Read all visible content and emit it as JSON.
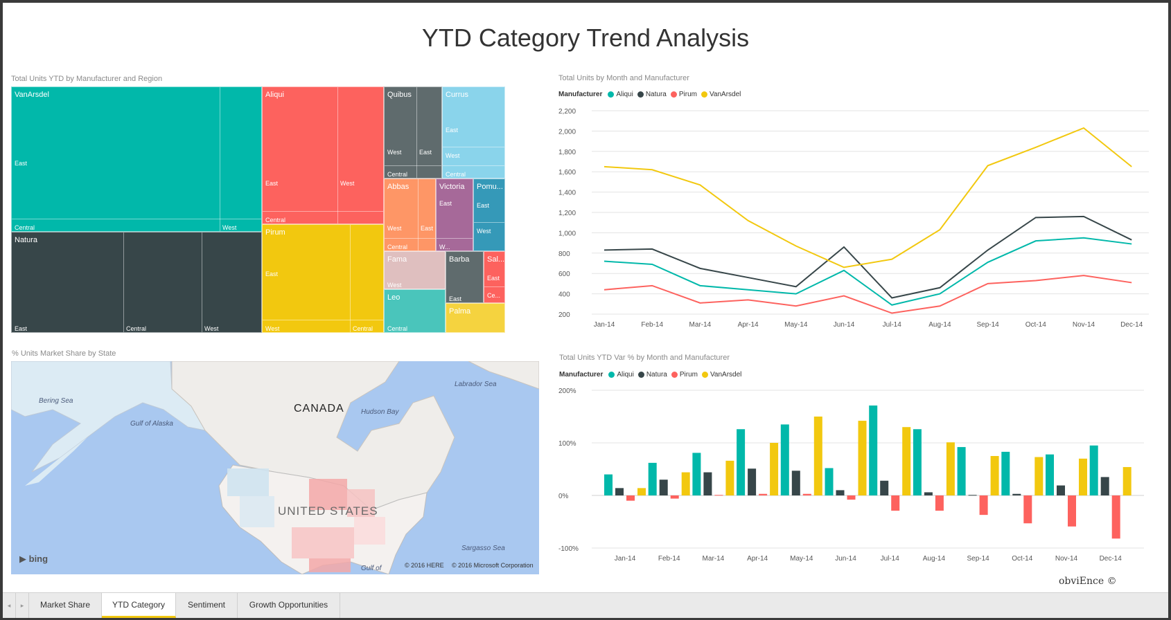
{
  "report": {
    "title": "YTD Category Trend Analysis",
    "copyright": "obviEnce ©"
  },
  "treemap": {
    "title": "Total Units YTD by Manufacturer and Region",
    "manufacturers": [
      {
        "name": "VanArsdel",
        "color": "#01b8aa",
        "regions": [
          "East",
          "Central",
          "West"
        ]
      },
      {
        "name": "Natura",
        "color": "#374649",
        "regions": [
          "East",
          "Central",
          "West"
        ]
      },
      {
        "name": "Aliqui",
        "color": "#fd625e",
        "regions": [
          "East",
          "West",
          "Central"
        ]
      },
      {
        "name": "Pirum",
        "color": "#f2c80f",
        "regions": [
          "East",
          "West",
          "Central"
        ]
      },
      {
        "name": "Quibus",
        "color": "#5f6b6d",
        "regions": [
          "West",
          "East",
          "Central"
        ]
      },
      {
        "name": "Currus",
        "color": "#8ad4eb",
        "regions": [
          "East",
          "West",
          "Central"
        ]
      },
      {
        "name": "Abbas",
        "color": "#fe9666",
        "regions": [
          "West",
          "East",
          "Central"
        ]
      },
      {
        "name": "Victoria",
        "color": "#a66999",
        "regions": [
          "East",
          "W..."
        ]
      },
      {
        "name": "Pomu...",
        "color": "#3599b8",
        "regions": [
          "East",
          "West"
        ]
      },
      {
        "name": "Fama",
        "color": "#dfbfbf",
        "regions": [
          "West"
        ]
      },
      {
        "name": "Barba",
        "color": "#5f6b6d",
        "regions": [
          "East"
        ]
      },
      {
        "name": "Sal...",
        "color": "#fd625e",
        "regions": [
          "East",
          "Ce..."
        ]
      },
      {
        "name": "Leo",
        "color": "#4ac5bb",
        "regions": [
          "Central"
        ]
      },
      {
        "name": "Palma",
        "color": "#f5d33f",
        "regions": []
      }
    ]
  },
  "map": {
    "title": "% Units Market Share by State",
    "labels": {
      "canada": "CANADA",
      "united_states": "UNITED STATES",
      "bering_sea": "Bering Sea",
      "gulf_alaska": "Gulf of Alaska",
      "hudson_bay": "Hudson Bay",
      "labrador_sea": "Labrador Sea",
      "sargasso_sea": "Sargasso Sea",
      "gulf_of": "Gulf of"
    },
    "bing_logo": "bing",
    "attribution_here": "© 2016 HERE",
    "attribution_ms": "© 2016 Microsoft Corporation"
  },
  "legend": {
    "title": "Manufacturer",
    "items": [
      {
        "name": "Aliqui",
        "color": "#01b8aa"
      },
      {
        "name": "Natura",
        "color": "#374649"
      },
      {
        "name": "Pirum",
        "color": "#fd625e"
      },
      {
        "name": "VanArsdel",
        "color": "#f2c80f"
      }
    ]
  },
  "chart_data": [
    {
      "type": "line",
      "title": "Total Units by Month and Manufacturer",
      "categories": [
        "Jan-14",
        "Feb-14",
        "Mar-14",
        "Apr-14",
        "May-14",
        "Jun-14",
        "Jul-14",
        "Aug-14",
        "Sep-14",
        "Oct-14",
        "Nov-14",
        "Dec-14"
      ],
      "y_ticks": [
        "200",
        "400",
        "600",
        "800",
        "1,000",
        "1,200",
        "1,400",
        "1,600",
        "1,800",
        "2,000",
        "2,200"
      ],
      "ylim": [
        200,
        2200
      ],
      "grid": true,
      "legend_position": "top-left",
      "series": [
        {
          "name": "Aliqui",
          "color": "#01b8aa",
          "values": [
            720,
            690,
            480,
            440,
            400,
            630,
            290,
            400,
            710,
            920,
            950,
            890
          ]
        },
        {
          "name": "Natura",
          "color": "#374649",
          "values": [
            830,
            840,
            650,
            560,
            470,
            860,
            360,
            460,
            830,
            1150,
            1160,
            930
          ]
        },
        {
          "name": "Pirum",
          "color": "#fd625e",
          "values": [
            440,
            480,
            310,
            340,
            280,
            380,
            210,
            280,
            500,
            530,
            580,
            510
          ]
        },
        {
          "name": "VanArsdel",
          "color": "#f2c80f",
          "values": [
            1650,
            1620,
            1470,
            1120,
            870,
            660,
            740,
            1030,
            1660,
            1840,
            2030,
            1650
          ]
        }
      ]
    },
    {
      "type": "bar",
      "title": "Total Units YTD Var % by Month and Manufacturer",
      "categories": [
        "Jan-14",
        "Feb-14",
        "Mar-14",
        "Apr-14",
        "May-14",
        "Jun-14",
        "Jul-14",
        "Aug-14",
        "Sep-14",
        "Oct-14",
        "Nov-14",
        "Dec-14"
      ],
      "y_ticks": [
        "-100%",
        "0%",
        "100%",
        "200%"
      ],
      "ylim": [
        -100,
        200
      ],
      "grid": true,
      "legend_position": "top-left",
      "series": [
        {
          "name": "Aliqui",
          "color": "#01b8aa",
          "values": [
            40,
            62,
            81,
            126,
            135,
            52,
            171,
            126,
            92,
            83,
            78,
            95
          ]
        },
        {
          "name": "Natura",
          "color": "#374649",
          "values": [
            14,
            30,
            44,
            51,
            47,
            10,
            28,
            6,
            1,
            3,
            19,
            35
          ]
        },
        {
          "name": "Pirum",
          "color": "#fd625e",
          "values": [
            -10,
            -6,
            1,
            3,
            3,
            -8,
            -29,
            -29,
            -37,
            -53,
            -59,
            -82
          ]
        },
        {
          "name": "VanArsdel",
          "color": "#f2c80f",
          "values": [
            14,
            44,
            66,
            100,
            150,
            142,
            130,
            101,
            75,
            73,
            70,
            54
          ]
        }
      ]
    }
  ],
  "tabs": {
    "prev_arrow": "◂",
    "next_arrow": "▸",
    "items": [
      {
        "label": "Market Share",
        "active": false
      },
      {
        "label": "YTD Category",
        "active": true
      },
      {
        "label": "Sentiment",
        "active": false
      },
      {
        "label": "Growth Opportunities",
        "active": false
      }
    ]
  }
}
